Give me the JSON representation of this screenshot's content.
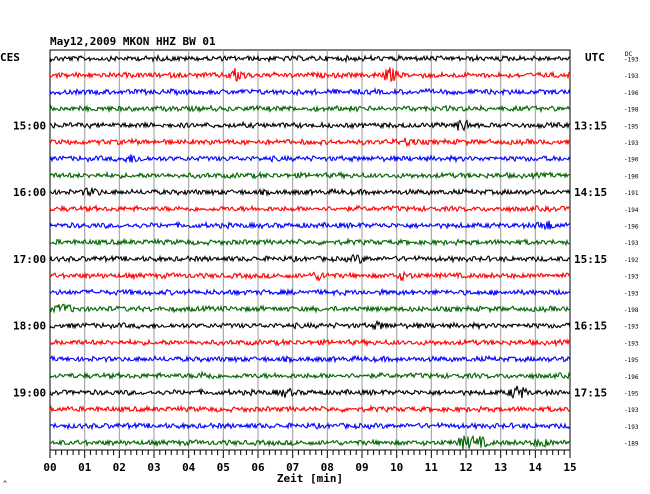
{
  "header": {
    "title": "May12,2009   MKON HHZ BW 01",
    "left_zone": "CES",
    "right_zone": "UTC",
    "dc_label": "DC"
  },
  "plot": {
    "rows": 24,
    "trace_colors": [
      "#000000",
      "#ff0000",
      "#0000ff",
      "#006400"
    ],
    "left_times": [
      "15:00",
      "16:00",
      "17:00",
      "18:00",
      "19:00"
    ],
    "right_times": [
      "13:15",
      "14:15",
      "15:15",
      "16:15",
      "17:15"
    ],
    "dc_values": [
      "193",
      "193",
      "196",
      "198",
      "195",
      "193",
      "190",
      "190",
      "191",
      "194",
      "196",
      "193",
      "192",
      "193",
      "193",
      "198",
      "193",
      "193",
      "195",
      "196",
      "195",
      "193",
      "193",
      "189"
    ],
    "x_ticks": [
      "00",
      "01",
      "02",
      "03",
      "04",
      "05",
      "06",
      "07",
      "08",
      "09",
      "10",
      "11",
      "12",
      "13",
      "14",
      "15"
    ],
    "x_label": "Zeit [min]",
    "corner_mark": "^"
  }
}
